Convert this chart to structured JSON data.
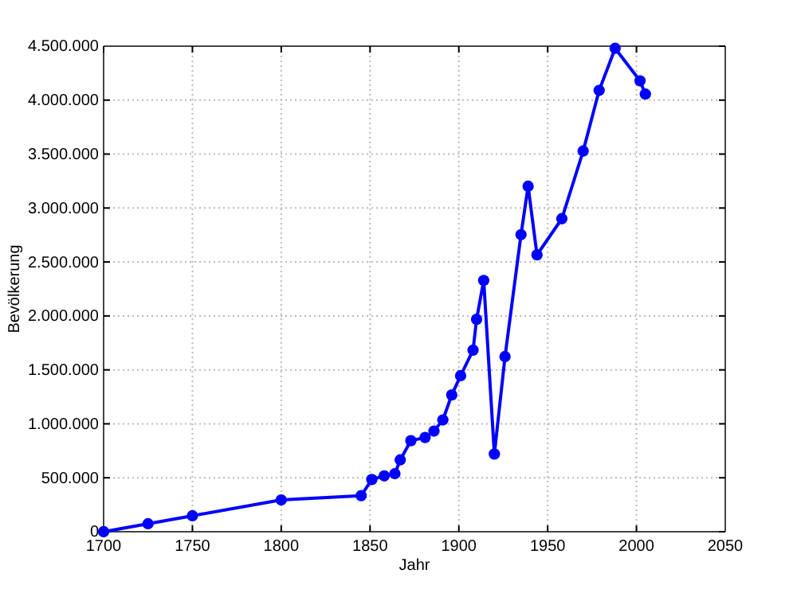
{
  "chart_data": {
    "type": "line",
    "xlabel": "Jahr",
    "ylabel": "Bevölkerung",
    "x": [
      1700,
      1725,
      1750,
      1800,
      1845,
      1851,
      1858,
      1864,
      1867,
      1873,
      1881,
      1886,
      1891,
      1896,
      1901,
      1908,
      1910,
      1914,
      1920,
      1926,
      1935,
      1939,
      1944,
      1958,
      1970,
      1979,
      1988,
      2002,
      2005
    ],
    "series": [
      {
        "color": "#0000ff",
        "values": [
          0,
          74000,
          148000,
          295000,
          334000,
          484000,
          518000,
          538000,
          666000,
          844000,
          873000,
          933000,
          1036000,
          1268000,
          1446000,
          1683000,
          1969000,
          2329000,
          720000,
          1623000,
          2753000,
          3202000,
          2566000,
          2901000,
          3528000,
          4090000,
          4480000,
          4179000,
          4056000
        ]
      }
    ],
    "xlim": [
      1700,
      2050
    ],
    "xticks": [
      1700,
      1750,
      1800,
      1850,
      1900,
      1950,
      2000,
      2050
    ],
    "ylim": [
      0,
      4500000
    ],
    "yticks": [
      {
        "value": 0,
        "label": "0"
      },
      {
        "value": 500000,
        "label": "500.000"
      },
      {
        "value": 1000000,
        "label": "1.000.000"
      },
      {
        "value": 1500000,
        "label": "1.500.000"
      },
      {
        "value": 2000000,
        "label": "2.000.000"
      },
      {
        "value": 2500000,
        "label": "2.500.000"
      },
      {
        "value": 3000000,
        "label": "3.000.000"
      },
      {
        "value": 3500000,
        "label": "3.500.000"
      },
      {
        "value": 4000000,
        "label": "4.000.000"
      },
      {
        "value": 4500000,
        "label": "4.500.000"
      }
    ],
    "grid": true,
    "marker": "circle",
    "line_style": "solid"
  }
}
